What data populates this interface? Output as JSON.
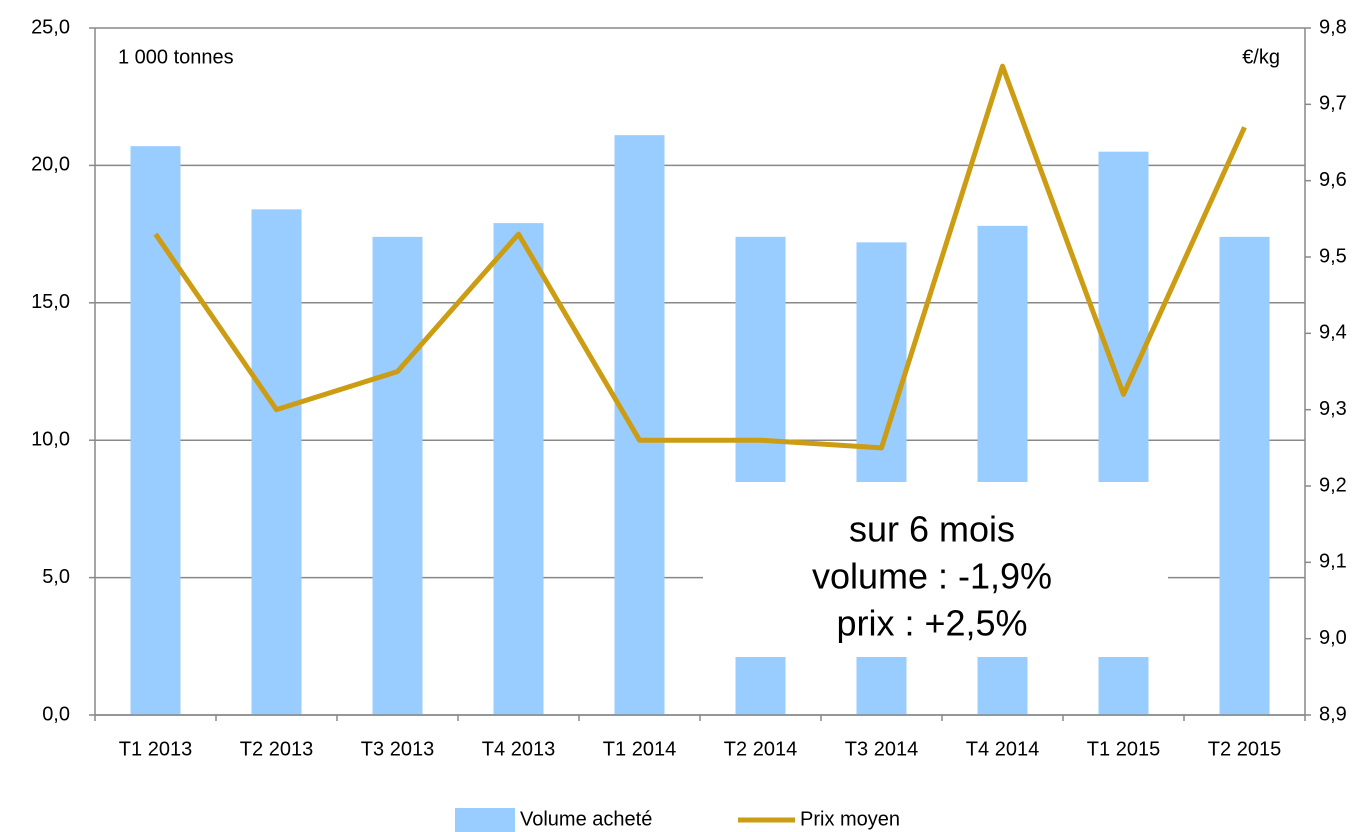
{
  "chart_data": {
    "type": "bar-line",
    "y_unit_label": "1 000 tonnes",
    "y2_unit_label": "€/kg",
    "annotation": [
      "sur 6 mois",
      "volume : -1,9%",
      "prix : +2,5%"
    ],
    "categories": [
      "T1 2013",
      "T2 2013",
      "T3 2013",
      "T4 2013",
      "T1 2014",
      "T2 2014",
      "T3 2014",
      "T4 2014",
      "T1 2015",
      "T2 2015"
    ],
    "series": [
      {
        "name": "Volume acheté",
        "type": "bar",
        "color": "#99ccff",
        "axis": "y",
        "values": [
          20.7,
          18.4,
          17.4,
          17.9,
          21.1,
          17.4,
          17.2,
          17.8,
          20.5,
          17.4
        ]
      },
      {
        "name": "Prix moyen",
        "type": "line",
        "color": "#cc9c12",
        "axis": "y2",
        "values": [
          9.53,
          9.3,
          9.35,
          9.53,
          9.26,
          9.26,
          9.25,
          9.75,
          9.32,
          9.67
        ]
      }
    ],
    "ylim": [
      0,
      25
    ],
    "yticks": [
      {
        "value": 0,
        "label": "0,0"
      },
      {
        "value": 5,
        "label": "5,0"
      },
      {
        "value": 10,
        "label": "10,0"
      },
      {
        "value": 15,
        "label": "15,0"
      },
      {
        "value": 20,
        "label": "20,0"
      },
      {
        "value": 25,
        "label": "25,0"
      }
    ],
    "y2lim": [
      8.9,
      9.8
    ],
    "y2ticks": [
      {
        "value": 8.9,
        "label": "8,9"
      },
      {
        "value": 9.0,
        "label": "9,0"
      },
      {
        "value": 9.1,
        "label": "9,1"
      },
      {
        "value": 9.2,
        "label": "9,2"
      },
      {
        "value": 9.3,
        "label": "9,3"
      },
      {
        "value": 9.4,
        "label": "9,4"
      },
      {
        "value": 9.5,
        "label": "9,5"
      },
      {
        "value": 9.6,
        "label": "9,6"
      },
      {
        "value": 9.7,
        "label": "9,7"
      },
      {
        "value": 9.8,
        "label": "9,8"
      }
    ],
    "grid": true,
    "legend": "bottom"
  }
}
